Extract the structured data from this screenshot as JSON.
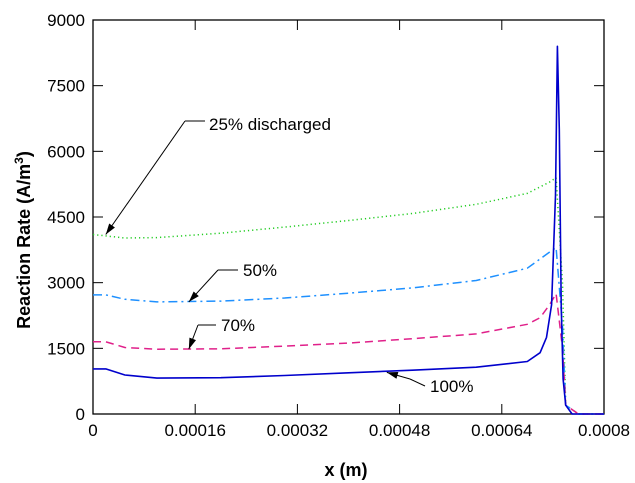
{
  "chart_data": {
    "type": "line",
    "xlabel": "x (m)",
    "ylabel": "Reaction Rate (A/m",
    "ylabel_sup": "3",
    "ylabel_close": ")",
    "xlim": [
      0,
      0.0008
    ],
    "ylim": [
      0,
      9000
    ],
    "x_ticks": [
      0,
      0.00016,
      0.00032,
      0.00048,
      0.00064,
      0.0008
    ],
    "x_tick_labels": [
      "0",
      "0.00016",
      "0.00032",
      "0.00048",
      "0.00064",
      "0.0008"
    ],
    "y_ticks": [
      0,
      1500,
      3000,
      4500,
      6000,
      7500,
      9000
    ],
    "y_tick_labels": [
      "0",
      "1500",
      "3000",
      "4500",
      "6000",
      "7500",
      "9000"
    ],
    "grid": false,
    "legend": "none",
    "series": [
      {
        "name": "25% discharged",
        "color": "#22cc22",
        "dash": "dotted",
        "x": [
          0,
          5e-05,
          0.0001,
          0.0002,
          0.0003,
          0.0004,
          0.0005,
          0.0006,
          0.00068,
          0.000715,
          0.000725,
          0.000735,
          0.00074,
          0.00076,
          0.00078,
          0.0008
        ],
        "y": [
          4100,
          4020,
          4030,
          4130,
          4270,
          4420,
          4580,
          4790,
          5040,
          5300,
          5400,
          3000,
          200,
          0,
          0,
          0
        ]
      },
      {
        "name": "50%",
        "color": "#1e90ff",
        "dash": "dashdot",
        "x": [
          0,
          2e-05,
          5e-05,
          0.0001,
          0.0002,
          0.0003,
          0.0004,
          0.0005,
          0.0006,
          0.00068,
          0.000715,
          0.000725,
          0.000735,
          0.00074,
          0.00076,
          0.00078,
          0.0008
        ],
        "y": [
          2720,
          2720,
          2620,
          2560,
          2580,
          2650,
          2760,
          2880,
          3050,
          3330,
          3700,
          3800,
          2000,
          200,
          0,
          0,
          0
        ]
      },
      {
        "name": "70%",
        "color": "#e0208a",
        "dash": "dashed",
        "x": [
          0,
          2e-05,
          5e-05,
          0.0001,
          0.0002,
          0.0003,
          0.0004,
          0.0005,
          0.0006,
          0.00068,
          0.0007,
          0.000715,
          0.000725,
          0.000735,
          0.00074,
          0.00076,
          0.00078,
          0.0008
        ],
        "y": [
          1650,
          1650,
          1520,
          1480,
          1490,
          1550,
          1620,
          1720,
          1830,
          2050,
          2200,
          2500,
          2750,
          1500,
          200,
          0,
          0,
          0
        ]
      },
      {
        "name": "100%",
        "color": "#0000cc",
        "dash": "solid",
        "x": [
          0,
          2e-05,
          5e-05,
          0.0001,
          0.0002,
          0.0003,
          0.0004,
          0.0005,
          0.0006,
          0.00068,
          0.0007,
          0.00071,
          0.000718,
          0.000724,
          0.000727,
          0.00073,
          0.000733,
          0.000736,
          0.00074,
          0.00075,
          0.00077,
          0.0008
        ],
        "y": [
          1030,
          1030,
          890,
          820,
          830,
          880,
          940,
          1000,
          1070,
          1200,
          1400,
          1750,
          2500,
          5000,
          8400,
          6500,
          2500,
          800,
          200,
          0,
          0,
          0
        ]
      }
    ],
    "annotations": [
      {
        "text": "25% discharged",
        "series": "25% discharged",
        "x": 2e-05,
        "y": 4100
      },
      {
        "text": "50%",
        "series": "50%",
        "x": 0.00015,
        "y": 2560
      },
      {
        "text": "70%",
        "series": "70%",
        "x": 0.00015,
        "y": 1480
      },
      {
        "text": "100%",
        "series": "100%",
        "x": 0.00046,
        "y": 950
      }
    ]
  }
}
